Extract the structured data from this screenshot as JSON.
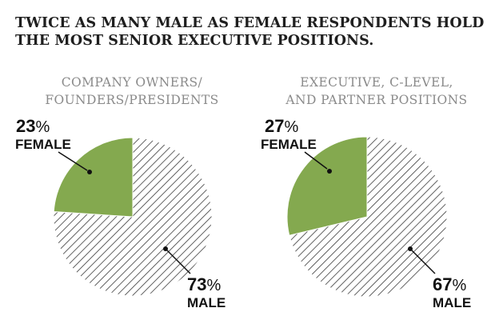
{
  "headline": "TWICE AS MANY MALE AS FEMALE RESPONDENTS HOLD THE MOST SENIOR EXECUTIVE POSITIONS.",
  "colors": {
    "female": "#84a94f",
    "male_hatch": "#3a3a3a",
    "title": "#8a8a8a"
  },
  "chart_data": [
    {
      "type": "pie",
      "title_lines": [
        "COMPANY OWNERS/",
        "FOUNDERS/PRESIDENTS"
      ],
      "slices": [
        {
          "name": "FEMALE",
          "value": 23,
          "display": "23%",
          "fill": "solid-green"
        },
        {
          "name": "MALE",
          "value": 73,
          "display": "73%",
          "fill": "hatched"
        }
      ]
    },
    {
      "type": "pie",
      "title_lines": [
        "EXECUTIVE, C-LEVEL,",
        "AND PARTNER POSITIONS"
      ],
      "slices": [
        {
          "name": "FEMALE",
          "value": 27,
          "display": "27%",
          "fill": "solid-green"
        },
        {
          "name": "MALE",
          "value": 67,
          "display": "67%",
          "fill": "hatched"
        }
      ]
    }
  ]
}
